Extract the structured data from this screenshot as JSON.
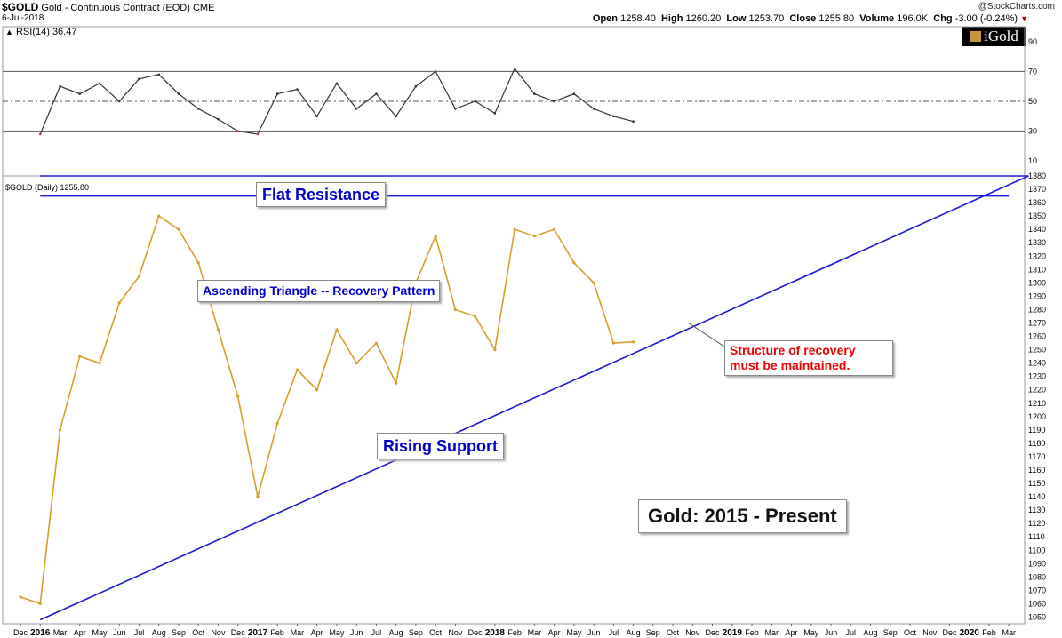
{
  "header": {
    "symbol": "$GOLD",
    "description": "Gold - Continuous Contract (EOD)",
    "exchange": "CME",
    "date": "6-Jul-2018",
    "copyright": "@StockCharts.com",
    "open_label": "Open",
    "open": "1258.40",
    "high_label": "High",
    "high": "1260.20",
    "low_label": "Low",
    "low": "1253.70",
    "close_label": "Close",
    "close": "1255.80",
    "volume_label": "Volume",
    "volume": "196.0K",
    "chg_label": "Chg",
    "chg": "-3.00 (-0.24%)"
  },
  "rsi_label": "RSI(14) 36.47",
  "price_label": "$GOLD (Daily) 1255.80",
  "logo_text": "iGold",
  "annotations": {
    "flat_resistance": "Flat Resistance",
    "ascending_triangle": "Ascending Triangle -- Recovery Pattern",
    "rising_support": "Rising Support",
    "structure": "Structure of recovery must be maintained.",
    "title_box": "Gold: 2015 - Present"
  },
  "colors": {
    "price": "#d4a02a",
    "trendline": "#1a1ad6",
    "rsi_line": "#333333",
    "rsi_over": "#3a7a3a",
    "rsi_under": "#b04040",
    "annotation_text": "#0000cc",
    "warning_text": "#ee0000"
  },
  "chart_data": [
    {
      "type": "line",
      "name": "RSI(14)",
      "ylim": [
        0,
        100
      ],
      "y_ticks": [
        10,
        30,
        50,
        70,
        90
      ],
      "reference_lines": [
        30,
        50,
        70
      ],
      "x": [
        "2016-01",
        "2016-02",
        "2016-03",
        "2016-04",
        "2016-05",
        "2016-06",
        "2016-07",
        "2016-08",
        "2016-09",
        "2016-10",
        "2016-11",
        "2016-12",
        "2017-01",
        "2017-02",
        "2017-03",
        "2017-04",
        "2017-05",
        "2017-06",
        "2017-07",
        "2017-08",
        "2017-09",
        "2017-10",
        "2017-11",
        "2017-12",
        "2018-01",
        "2018-02",
        "2018-03",
        "2018-04",
        "2018-05",
        "2018-06",
        "2018-07"
      ],
      "values": [
        28,
        60,
        55,
        62,
        50,
        65,
        68,
        55,
        45,
        38,
        30,
        28,
        55,
        58,
        40,
        62,
        45,
        55,
        40,
        60,
        70,
        45,
        50,
        42,
        72,
        55,
        50,
        55,
        45,
        40,
        36.47
      ]
    },
    {
      "type": "line",
      "name": "$GOLD (Daily)",
      "ylim": [
        1045,
        1380
      ],
      "y_ticks": [
        1050,
        1060,
        1070,
        1080,
        1090,
        1100,
        1110,
        1120,
        1130,
        1140,
        1150,
        1160,
        1170,
        1180,
        1190,
        1200,
        1210,
        1220,
        1230,
        1240,
        1250,
        1260,
        1270,
        1280,
        1290,
        1300,
        1310,
        1320,
        1330,
        1340,
        1350,
        1360,
        1370,
        1380
      ],
      "x_ticks": [
        "Dec",
        "2016",
        "Mar",
        "Apr",
        "May",
        "Jun",
        "Jul",
        "Aug",
        "Sep",
        "Oct",
        "Nov",
        "Dec",
        "2017",
        "Feb",
        "Mar",
        "Apr",
        "May",
        "Jun",
        "Jul",
        "Aug",
        "Sep",
        "Oct",
        "Nov",
        "Dec",
        "2018",
        "Feb",
        "Mar",
        "Apr",
        "May",
        "Jun",
        "Jul",
        "Aug",
        "Sep",
        "Oct",
        "Nov",
        "Dec",
        "2019",
        "Feb",
        "Mar",
        "Apr",
        "May",
        "Jun",
        "Jul",
        "Aug",
        "Sep",
        "Oct",
        "Nov",
        "Dec",
        "2020",
        "Feb",
        "Mar"
      ],
      "x": [
        "2015-12",
        "2016-01",
        "2016-02",
        "2016-03",
        "2016-04",
        "2016-05",
        "2016-06",
        "2016-07",
        "2016-08",
        "2016-09",
        "2016-10",
        "2016-11",
        "2016-12",
        "2017-01",
        "2017-02",
        "2017-03",
        "2017-04",
        "2017-05",
        "2017-06",
        "2017-07",
        "2017-08",
        "2017-09",
        "2017-10",
        "2017-11",
        "2017-12",
        "2018-01",
        "2018-02",
        "2018-03",
        "2018-04",
        "2018-05",
        "2018-06",
        "2018-07"
      ],
      "values": [
        1065,
        1060,
        1190,
        1245,
        1240,
        1285,
        1305,
        1350,
        1340,
        1315,
        1265,
        1215,
        1140,
        1195,
        1235,
        1220,
        1265,
        1240,
        1255,
        1225,
        1300,
        1335,
        1280,
        1275,
        1250,
        1340,
        1335,
        1340,
        1315,
        1300,
        1255,
        1255.8
      ],
      "trendlines": [
        {
          "name": "Flat Resistance",
          "points": [
            [
              "2016-01",
              1380
            ],
            [
              "2020-03",
              1380
            ]
          ]
        },
        {
          "name": "Flat Resistance",
          "points": [
            [
              "2016-01",
              1365
            ],
            [
              "2020-02",
              1365
            ]
          ]
        },
        {
          "name": "Rising Support",
          "points": [
            [
              "2016-01",
              1048
            ],
            [
              "2020-03",
              1380
            ]
          ]
        }
      ]
    }
  ]
}
